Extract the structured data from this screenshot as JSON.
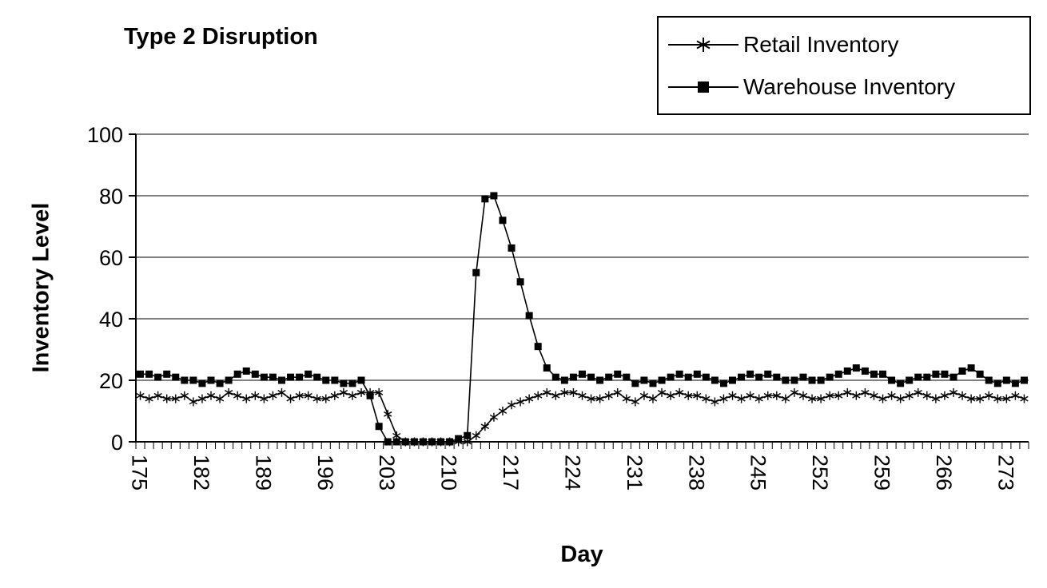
{
  "colors": {
    "ink": "#000000",
    "background": "#ffffff"
  },
  "legend": {
    "items": [
      {
        "label": "Retail Inventory",
        "marker": "asterisk"
      },
      {
        "label": "Warehouse Inventory",
        "marker": "square"
      }
    ]
  },
  "chart_data": {
    "type": "line",
    "title": "Type 2 Disruption",
    "xlabel": "Day",
    "ylabel": "Inventory Level",
    "x_start": 175,
    "x_end": 275,
    "x_ticks": [
      175,
      182,
      189,
      196,
      203,
      210,
      217,
      224,
      231,
      238,
      245,
      252,
      259,
      266,
      273
    ],
    "y_ticks": [
      0,
      20,
      40,
      60,
      80,
      100
    ],
    "ylim": [
      0,
      100
    ],
    "grid": true,
    "legend_position": "top-right",
    "series": [
      {
        "name": "Retail Inventory",
        "marker": "asterisk",
        "values": [
          15,
          14,
          15,
          14,
          14,
          15,
          13,
          14,
          15,
          14,
          16,
          15,
          14,
          15,
          14,
          15,
          16,
          14,
          15,
          15,
          14,
          14,
          15,
          16,
          15,
          16,
          16,
          16,
          9,
          2,
          0,
          0,
          0,
          0,
          0,
          0,
          0,
          0,
          2,
          5,
          8,
          10,
          12,
          13,
          14,
          15,
          16,
          15,
          16,
          16,
          15,
          14,
          14,
          15,
          16,
          14,
          13,
          15,
          14,
          16,
          15,
          16,
          15,
          15,
          14,
          13,
          14,
          15,
          14,
          15,
          14,
          15,
          15,
          14,
          16,
          15,
          14,
          14,
          15,
          15,
          16,
          15,
          16,
          15,
          14,
          15,
          14,
          15,
          16,
          15,
          14,
          15,
          16,
          15,
          14,
          14,
          15,
          14,
          14,
          15,
          14
        ]
      },
      {
        "name": "Warehouse Inventory",
        "marker": "square",
        "values": [
          22,
          22,
          21,
          22,
          21,
          20,
          20,
          19,
          20,
          19,
          20,
          22,
          23,
          22,
          21,
          21,
          20,
          21,
          21,
          22,
          21,
          20,
          20,
          19,
          19,
          20,
          15,
          5,
          0,
          0,
          0,
          0,
          0,
          0,
          0,
          0,
          1,
          2,
          55,
          79,
          80,
          72,
          63,
          52,
          41,
          31,
          24,
          21,
          20,
          21,
          22,
          21,
          20,
          21,
          22,
          21,
          19,
          20,
          19,
          20,
          21,
          22,
          21,
          22,
          21,
          20,
          19,
          20,
          21,
          22,
          21,
          22,
          21,
          20,
          20,
          21,
          20,
          20,
          21,
          22,
          23,
          24,
          23,
          22,
          22,
          20,
          19,
          20,
          21,
          21,
          22,
          22,
          21,
          23,
          24,
          22,
          20,
          19,
          20,
          19,
          20
        ]
      }
    ]
  }
}
